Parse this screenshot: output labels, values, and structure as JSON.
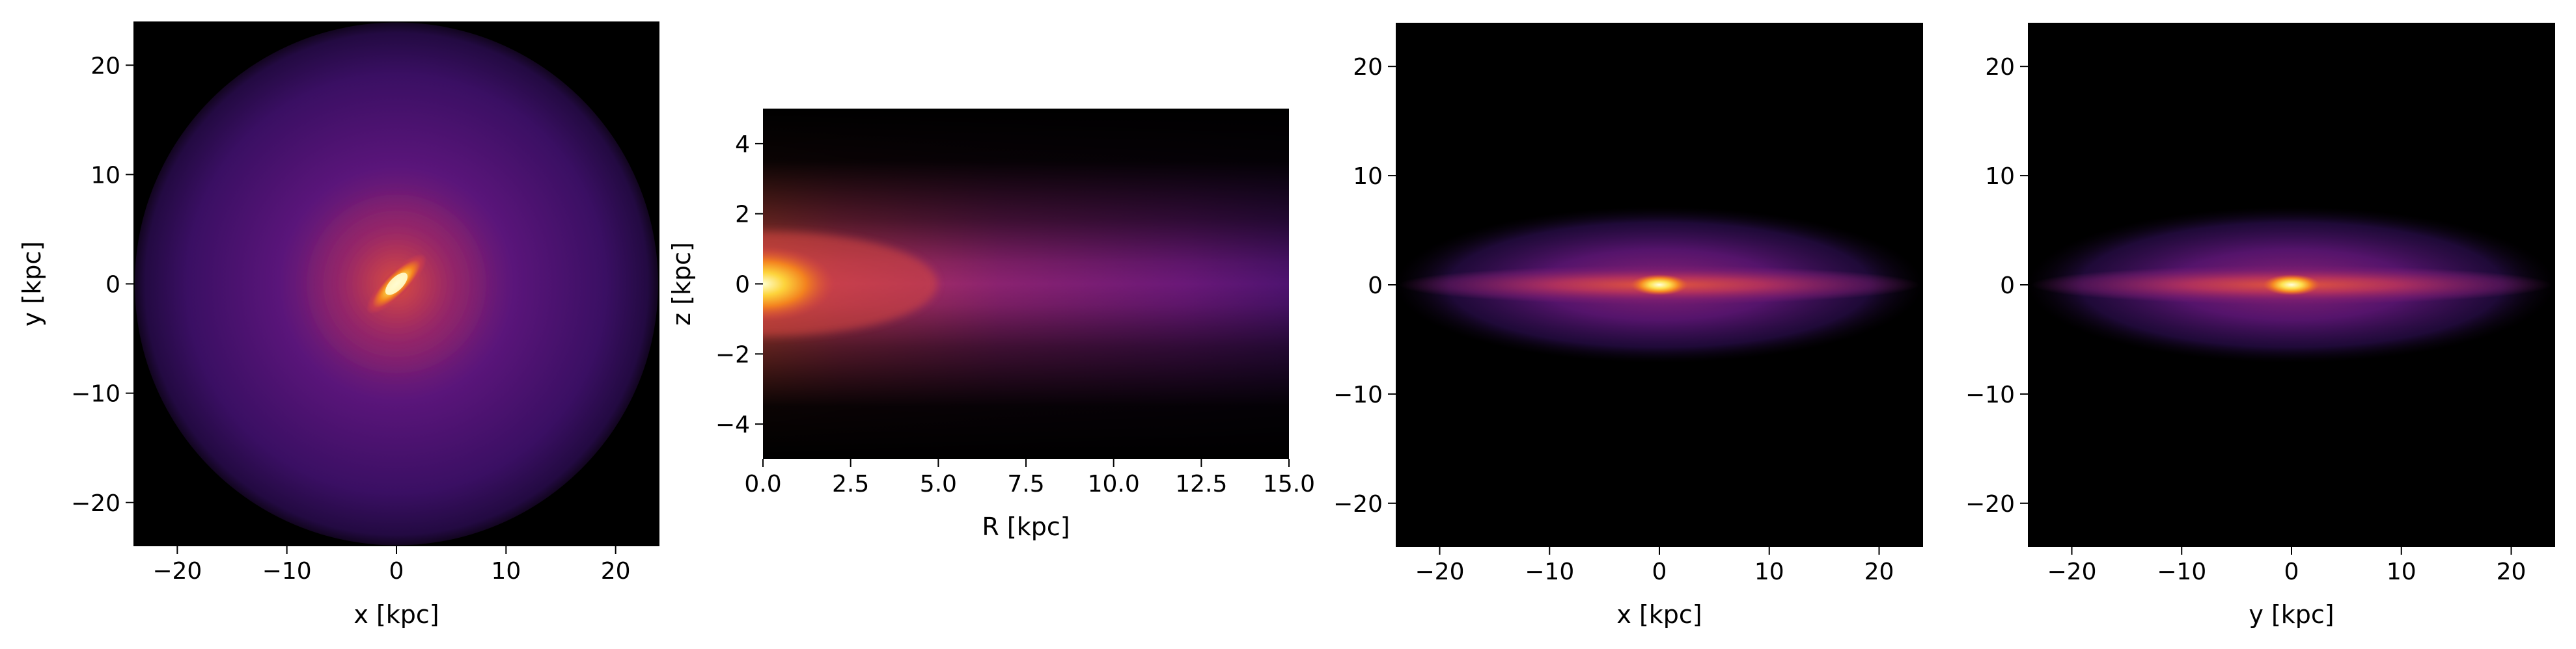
{
  "chart_data": [
    {
      "type": "heatmap",
      "title": "",
      "xlabel": "x [kpc]",
      "ylabel": "y [kpc]",
      "xlim": [
        -24,
        24
      ],
      "ylim": [
        -24,
        24
      ],
      "xticks": [
        -20,
        -10,
        0,
        10,
        20
      ],
      "yticks": [
        -20,
        -10,
        0,
        10,
        20
      ],
      "xtick_labels": [
        "−20",
        "−10",
        "0",
        "10",
        "20"
      ],
      "ytick_labels": [
        "−20",
        "−10",
        "0",
        "10",
        "20"
      ],
      "colormap": "inferno",
      "background": "#000000",
      "grid": false,
      "view": "face-on",
      "features": {
        "disk_radius": 24,
        "bar_half_length": 2.8,
        "bar_angle_deg": 45,
        "core_brightness": "high"
      }
    },
    {
      "type": "heatmap",
      "title": "",
      "xlabel": "R [kpc]",
      "ylabel": "z [kpc]",
      "xlim": [
        0,
        15
      ],
      "ylim": [
        -5,
        5
      ],
      "xticks": [
        0,
        2.5,
        5,
        7.5,
        10,
        12.5,
        15
      ],
      "yticks": [
        -4,
        -2,
        0,
        2,
        4
      ],
      "xtick_labels": [
        "0.0",
        "2.5",
        "5.0",
        "7.5",
        "10.0",
        "12.5",
        "15.0"
      ],
      "ytick_labels": [
        "−4",
        "−2",
        "0",
        "2",
        "4"
      ],
      "colormap": "inferno",
      "background": "#000000",
      "grid": false,
      "view": "radial-vertical",
      "features": {
        "core_extent_R": 2.0,
        "scale_height": 1.4
      }
    },
    {
      "type": "heatmap",
      "title": "",
      "xlabel": "x [kpc]",
      "ylabel": "",
      "xlim": [
        -24,
        24
      ],
      "ylim": [
        -24,
        24
      ],
      "xticks": [
        -20,
        -10,
        0,
        10,
        20
      ],
      "yticks": [
        -20,
        -10,
        0,
        10,
        20
      ],
      "xtick_labels": [
        "−20",
        "−10",
        "0",
        "10",
        "20"
      ],
      "ytick_labels": [
        "−20",
        "−10",
        "0",
        "10",
        "20"
      ],
      "colormap": "inferno",
      "background": "#000000",
      "grid": false,
      "view": "edge-on-xz",
      "features": {
        "disk_half_length": 24,
        "thick_half_height": 7,
        "thin_half_height": 1.6
      }
    },
    {
      "type": "heatmap",
      "title": "",
      "xlabel": "y [kpc]",
      "ylabel": "",
      "xlim": [
        -24,
        24
      ],
      "ylim": [
        -24,
        24
      ],
      "xticks": [
        -20,
        -10,
        0,
        10,
        20
      ],
      "yticks": [
        -20,
        -10,
        0,
        10,
        20
      ],
      "xtick_labels": [
        "−20",
        "−10",
        "0",
        "10",
        "20"
      ],
      "ytick_labels": [
        "−20",
        "−10",
        "0",
        "10",
        "20"
      ],
      "colormap": "inferno",
      "background": "#000000",
      "grid": false,
      "view": "edge-on-yz",
      "features": {
        "disk_half_length": 24,
        "thick_half_height": 7,
        "thin_half_height": 1.6
      }
    }
  ]
}
